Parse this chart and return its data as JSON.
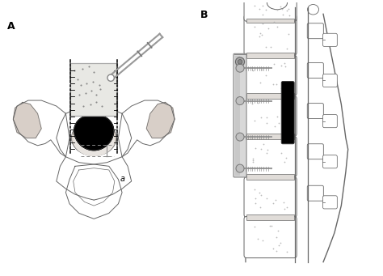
{
  "title_A": "A",
  "title_B": "B",
  "bg_color": "#ffffff",
  "outline_color": "#666666",
  "vertebra_fill": "#ffffff",
  "pedicle_fill": "#d8cfc8",
  "disc_fill": "#000000",
  "grey_fill": "#b8b0a8",
  "light_grey": "#e8e0d8",
  "box_fill": "#e8e8e4",
  "plate_fill": "#cccccc",
  "screw_fill": "#aaaaaa",
  "label_a": "a",
  "fig_width": 4.74,
  "fig_height": 3.41,
  "dpi": 100
}
